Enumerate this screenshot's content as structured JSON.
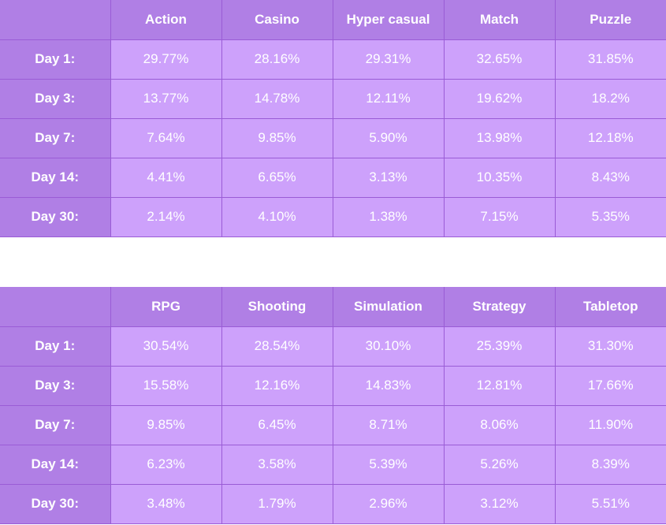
{
  "colors": {
    "header_bg": "#b07fe5",
    "cell_bg": "#cda1fb",
    "border": "#9a5cd6",
    "text": "#ffffff"
  },
  "chart_data": [
    {
      "type": "table",
      "columns": [
        "Action",
        "Casino",
        "Hyper casual",
        "Match",
        "Puzzle"
      ],
      "rows": [
        {
          "label": "Day 1:",
          "values": [
            "29.77%",
            "28.16%",
            "29.31%",
            "32.65%",
            "31.85%"
          ]
        },
        {
          "label": "Day 3:",
          "values": [
            "13.77%",
            "14.78%",
            "12.11%",
            "19.62%",
            "18.2%"
          ]
        },
        {
          "label": "Day 7:",
          "values": [
            "7.64%",
            "9.85%",
            "5.90%",
            "13.98%",
            "12.18%"
          ]
        },
        {
          "label": "Day 14:",
          "values": [
            "4.41%",
            "6.65%",
            "3.13%",
            "10.35%",
            "8.43%"
          ]
        },
        {
          "label": "Day 30:",
          "values": [
            "2.14%",
            "4.10%",
            "1.38%",
            "7.15%",
            "5.35%"
          ]
        }
      ]
    },
    {
      "type": "table",
      "columns": [
        "RPG",
        "Shooting",
        "Simulation",
        "Strategy",
        "Tabletop"
      ],
      "rows": [
        {
          "label": "Day 1:",
          "values": [
            "30.54%",
            "28.54%",
            "30.10%",
            "25.39%",
            "31.30%"
          ]
        },
        {
          "label": "Day 3:",
          "values": [
            "15.58%",
            "12.16%",
            "14.83%",
            "12.81%",
            "17.66%"
          ]
        },
        {
          "label": "Day 7:",
          "values": [
            "9.85%",
            "6.45%",
            "8.71%",
            "8.06%",
            "11.90%"
          ]
        },
        {
          "label": "Day 14:",
          "values": [
            "6.23%",
            "3.58%",
            "5.39%",
            "5.26%",
            "8.39%"
          ]
        },
        {
          "label": "Day 30:",
          "values": [
            "3.48%",
            "1.79%",
            "2.96%",
            "3.12%",
            "5.51%"
          ]
        }
      ]
    }
  ]
}
